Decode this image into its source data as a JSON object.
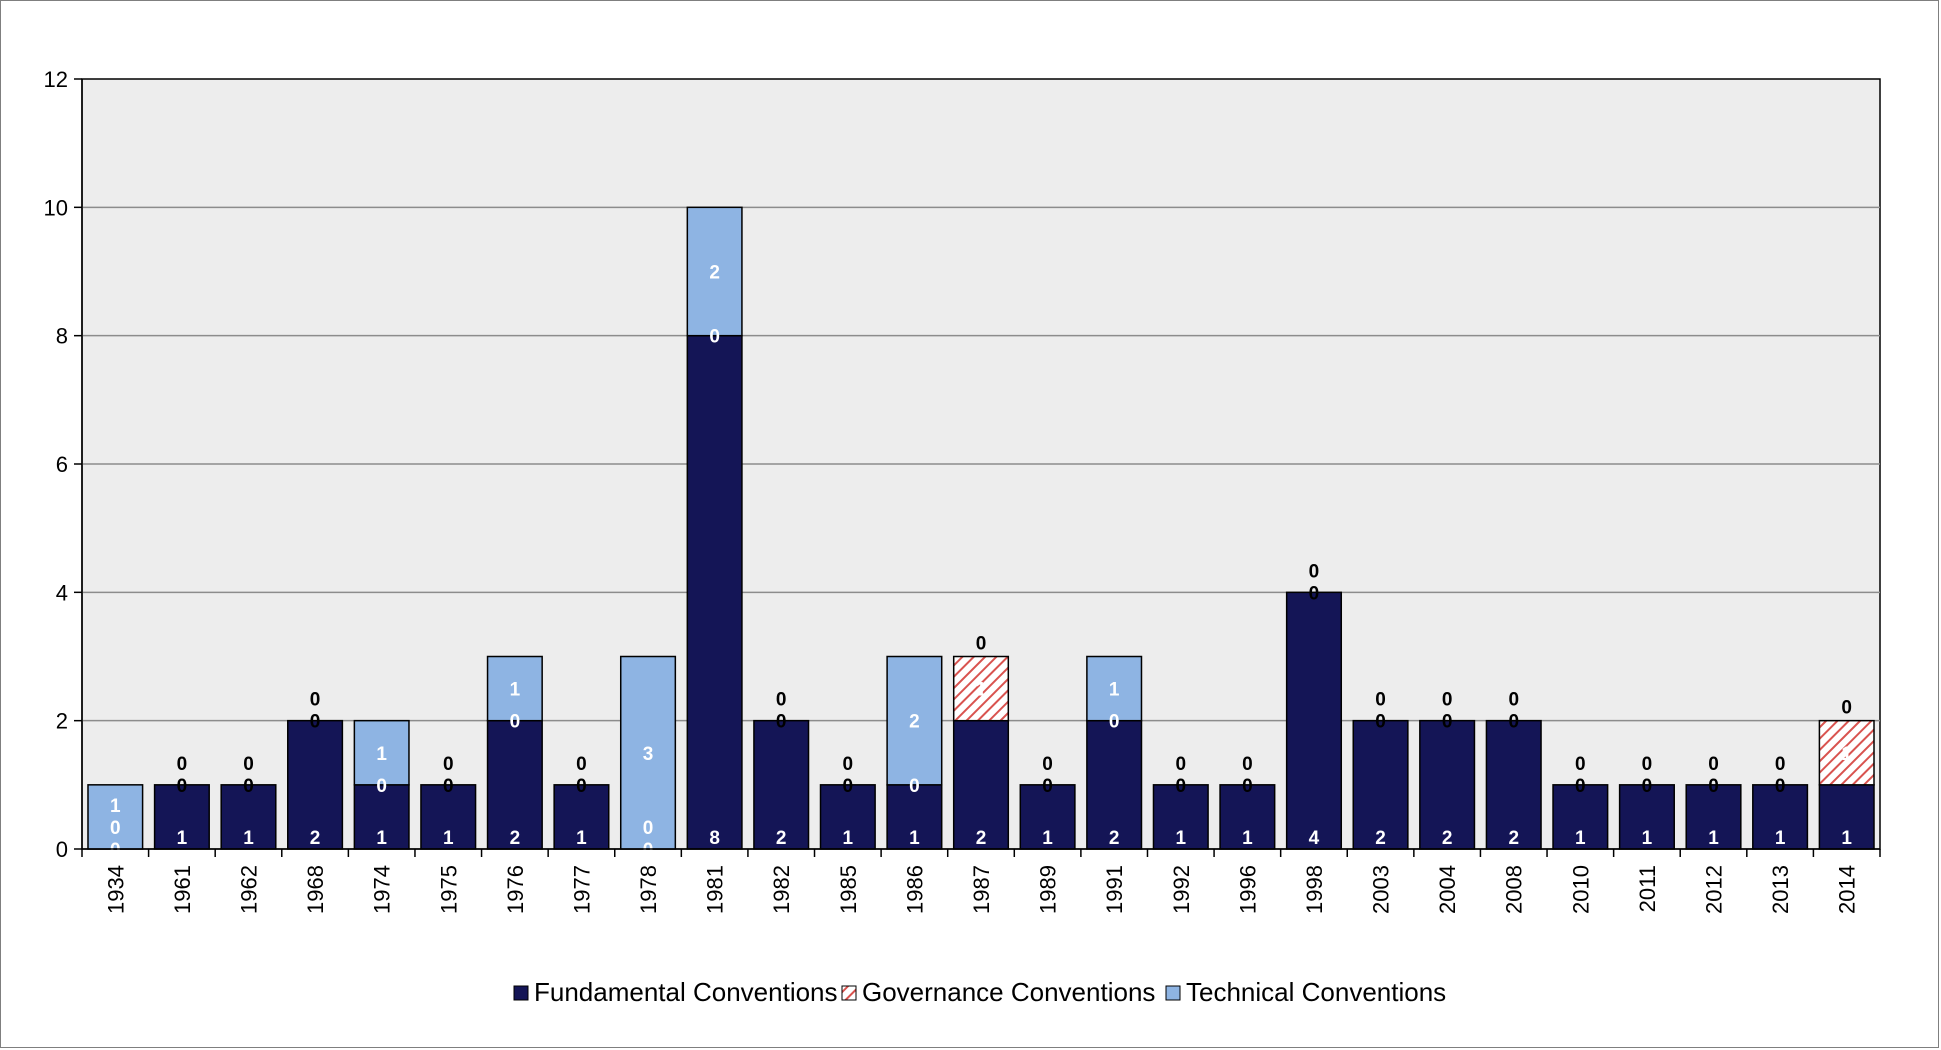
{
  "chart_data": {
    "type": "bar",
    "stacked": true,
    "title": "",
    "xlabel": "",
    "ylabel": "",
    "ylim": [
      0,
      12
    ],
    "yticks": [
      0,
      2,
      4,
      6,
      8,
      10,
      12
    ],
    "grid": true,
    "legend_position": "bottom",
    "categories": [
      "1934",
      "1961",
      "1962",
      "1968",
      "1974",
      "1975",
      "1976",
      "1977",
      "1978",
      "1981",
      "1982",
      "1985",
      "1986",
      "1987",
      "1989",
      "1991",
      "1992",
      "1996",
      "1998",
      "2003",
      "2004",
      "2008",
      "2010",
      "2011",
      "2012",
      "2013",
      "2014"
    ],
    "series": [
      {
        "name": "Fundamental Conventions",
        "color": "#141556",
        "values": [
          0,
          1,
          1,
          2,
          1,
          1,
          2,
          1,
          0,
          8,
          2,
          1,
          1,
          2,
          1,
          2,
          1,
          1,
          4,
          2,
          2,
          2,
          1,
          1,
          1,
          1,
          1
        ]
      },
      {
        "name": "Governance Conventions",
        "color": "#d9534f",
        "pattern": "hatched",
        "values": [
          0,
          0,
          0,
          0,
          0,
          0,
          0,
          0,
          0,
          0,
          0,
          0,
          0,
          1,
          0,
          0,
          0,
          0,
          0,
          0,
          0,
          0,
          0,
          0,
          0,
          0,
          1
        ]
      },
      {
        "name": "Technical Conventions",
        "color": "#8eb4e3",
        "values": [
          1,
          0,
          0,
          0,
          1,
          0,
          1,
          0,
          3,
          2,
          0,
          0,
          2,
          0,
          0,
          1,
          0,
          0,
          0,
          0,
          0,
          0,
          0,
          0,
          0,
          0,
          0
        ]
      }
    ]
  }
}
